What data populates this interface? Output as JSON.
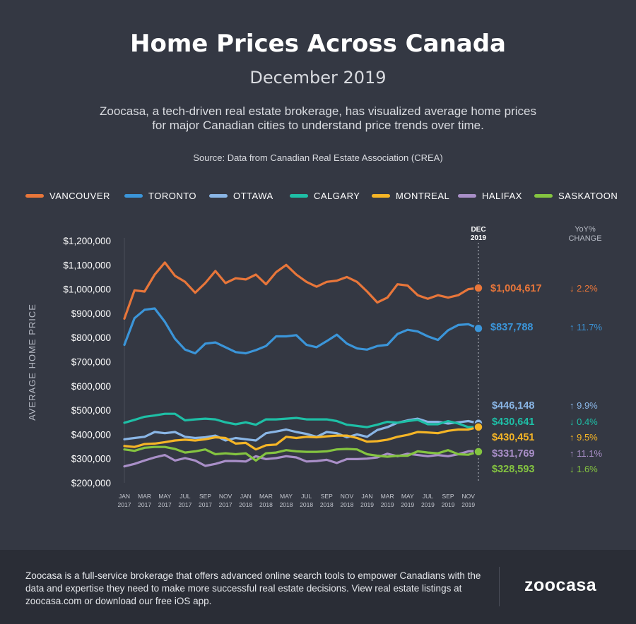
{
  "title": "Home Prices Across Canada",
  "subtitle": "December 2019",
  "description": "Zoocasa, a tech-driven real estate brokerage, has visualized average home prices for major Canadian cities to understand price trends over time.",
  "source": "Source: Data from Canadian Real Estate Association (CREA)",
  "footer": {
    "text": "Zoocasa is a full-service brokerage that offers advanced online search tools to empower Canadians with the data and expertise they need to make more successful real estate decisions. View real estate listings at zoocasa.com or download our free iOS app.",
    "logo": "zoocasa"
  },
  "chart_data": {
    "type": "line",
    "ylabel": "AVERAGE HOME PRICE",
    "ylim": [
      200000,
      1200000
    ],
    "yticks": [
      "$1,200,000",
      "$1,100,000",
      "$1,000,000",
      "$900,000",
      "$800,000",
      "$700,000",
      "$600,000",
      "$500,000",
      "$400,000",
      "$300,000",
      "$200,000"
    ],
    "x_tick_labels": [
      [
        "JAN",
        "2017"
      ],
      [
        "MAR",
        "2017"
      ],
      [
        "MAY",
        "2017"
      ],
      [
        "JUL",
        "2017"
      ],
      [
        "SEP",
        "2017"
      ],
      [
        "NOV",
        "2017"
      ],
      [
        "JAN",
        "2018"
      ],
      [
        "MAR",
        "2018"
      ],
      [
        "MAY",
        "2018"
      ],
      [
        "JUL",
        "2018"
      ],
      [
        "SEP",
        "2018"
      ],
      [
        "NOV",
        "2018"
      ],
      [
        "JAN",
        "2019"
      ],
      [
        "MAR",
        "2019"
      ],
      [
        "MAY",
        "2019"
      ],
      [
        "JUL",
        "2019"
      ],
      [
        "SEP",
        "2019"
      ],
      [
        "NOV",
        "2019"
      ]
    ],
    "end_marker": [
      "DEC",
      "2019"
    ],
    "change_header": [
      "YoY%",
      "CHANGE"
    ],
    "months": 36,
    "grid": false,
    "legend_placement": "top",
    "series": [
      {
        "name": "VANCOUVER",
        "color": "#e8763a",
        "end_value": "$1,004,617",
        "change": "↓ 2.2%",
        "values": [
          878000,
          995000,
          990000,
          1060000,
          1110000,
          1055000,
          1030000,
          985000,
          1025000,
          1075000,
          1025000,
          1045000,
          1040000,
          1060000,
          1020000,
          1070000,
          1100000,
          1060000,
          1030000,
          1010000,
          1030000,
          1035000,
          1050000,
          1030000,
          990000,
          945000,
          965000,
          1020000,
          1015000,
          975000,
          960000,
          975000,
          965000,
          975000,
          1000000,
          1004617
        ]
      },
      {
        "name": "TORONTO",
        "color": "#3b95d9",
        "end_value": "$837,788",
        "change": "↑ 11.7%",
        "values": [
          770000,
          880000,
          915000,
          920000,
          865000,
          795000,
          750000,
          735000,
          775000,
          780000,
          760000,
          740000,
          735000,
          748000,
          765000,
          805000,
          805000,
          810000,
          770000,
          760000,
          785000,
          812000,
          775000,
          755000,
          750000,
          765000,
          770000,
          815000,
          832000,
          825000,
          805000,
          790000,
          830000,
          852000,
          855000,
          837788
        ]
      },
      {
        "name": "OTTAWA",
        "color": "#8ab6e6",
        "end_value": "$446,148",
        "change": "↑ 9.9%",
        "values": [
          380000,
          385000,
          390000,
          410000,
          405000,
          410000,
          390000,
          385000,
          388000,
          395000,
          375000,
          385000,
          380000,
          375000,
          405000,
          412000,
          420000,
          410000,
          402000,
          390000,
          410000,
          405000,
          388000,
          400000,
          390000,
          418000,
          430000,
          448000,
          458000,
          465000,
          452000,
          452000,
          445000,
          450000,
          455000,
          446148
        ]
      },
      {
        "name": "CALGARY",
        "color": "#1ebfa6",
        "end_value": "$430,641",
        "change": "↓ 0.4%",
        "values": [
          448000,
          460000,
          473000,
          478000,
          485000,
          485000,
          458000,
          462000,
          465000,
          462000,
          450000,
          442000,
          450000,
          440000,
          462000,
          462000,
          465000,
          468000,
          462000,
          462000,
          462000,
          455000,
          440000,
          435000,
          430000,
          440000,
          452000,
          448000,
          455000,
          460000,
          442000,
          442000,
          455000,
          445000,
          430000,
          430641
        ]
      },
      {
        "name": "MONTREAL",
        "color": "#f5b526",
        "end_value": "$430,451",
        "change": "↑ 9.5%",
        "values": [
          352000,
          348000,
          360000,
          362000,
          368000,
          375000,
          378000,
          375000,
          380000,
          388000,
          385000,
          362000,
          365000,
          338000,
          355000,
          358000,
          390000,
          385000,
          390000,
          388000,
          392000,
          395000,
          395000,
          385000,
          370000,
          372000,
          378000,
          390000,
          398000,
          410000,
          408000,
          405000,
          415000,
          420000,
          420000,
          430451
        ]
      },
      {
        "name": "HALIFAX",
        "color": "#a98fc8",
        "end_value": "$331,769",
        "change": "↑ 11.1%",
        "values": [
          268000,
          278000,
          292000,
          305000,
          315000,
          292000,
          302000,
          292000,
          270000,
          278000,
          290000,
          290000,
          288000,
          310000,
          298000,
          302000,
          310000,
          305000,
          288000,
          290000,
          295000,
          282000,
          298000,
          298000,
          300000,
          305000,
          320000,
          310000,
          320000,
          315000,
          310000,
          315000,
          310000,
          318000,
          330000,
          331769
        ]
      },
      {
        "name": "SASKATOON",
        "color": "#84c440",
        "end_value": "$328,593",
        "change": "↓ 1.6%",
        "values": [
          338000,
          332000,
          345000,
          348000,
          348000,
          340000,
          325000,
          330000,
          338000,
          318000,
          322000,
          318000,
          322000,
          292000,
          322000,
          325000,
          335000,
          330000,
          328000,
          328000,
          330000,
          338000,
          340000,
          338000,
          318000,
          312000,
          308000,
          312000,
          312000,
          330000,
          325000,
          322000,
          335000,
          318000,
          316000,
          328593
        ]
      }
    ]
  }
}
